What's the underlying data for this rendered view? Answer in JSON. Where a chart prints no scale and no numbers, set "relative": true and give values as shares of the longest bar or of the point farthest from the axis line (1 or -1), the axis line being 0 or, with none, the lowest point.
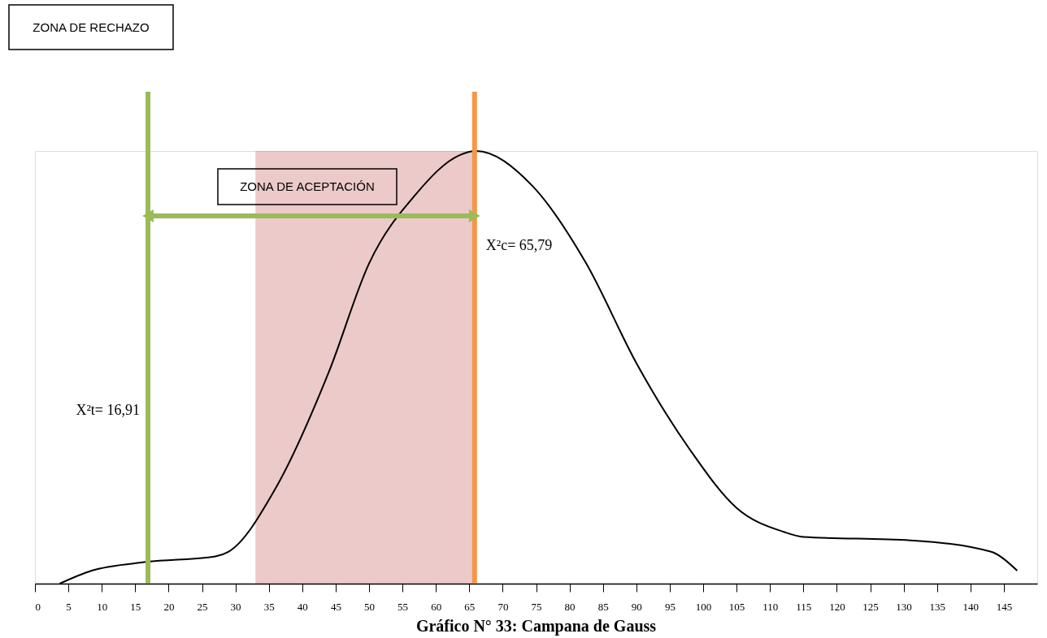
{
  "chart_data": {
    "type": "line",
    "relative": true,
    "title": "Gráfico N° 33: Campana de Gauss",
    "x": [
      3.7,
      8.5,
      16.7,
      27,
      29,
      36,
      44,
      50,
      57,
      63.5,
      66,
      74.4,
      82.5,
      90,
      98,
      105,
      112,
      115,
      131,
      143,
      147
    ],
    "series": [
      {
        "color": "#000000",
        "values": [
          0,
          0.03,
          0.05,
          0.063,
          0.074,
          0.22,
          0.49,
          0.74,
          0.9,
          0.99,
          1,
          0.92,
          0.74,
          0.51,
          0.31,
          0.175,
          0.12,
          0.108,
          0.1,
          0.074,
          0.03
        ]
      }
    ],
    "xlim": [
      0,
      150
    ],
    "xticks": [
      0,
      5,
      10,
      15,
      20,
      25,
      30,
      35,
      40,
      45,
      50,
      55,
      60,
      65,
      70,
      75,
      80,
      85,
      90,
      95,
      100,
      105,
      110,
      115,
      120,
      125,
      130,
      135,
      140,
      145
    ],
    "ref_lines": [
      {
        "axis": "x",
        "value": 16.91,
        "label": "X²t= 16,91",
        "color": "#9bbb59"
      },
      {
        "axis": "x",
        "value": 65.79,
        "label": "X²c= 65,79",
        "color": "#f79646"
      }
    ],
    "bands": [
      {
        "axis": "x",
        "from": 33,
        "to": 65.79,
        "color": "#c0504d"
      }
    ],
    "annotations": [
      "ZONA DE RECHAZO",
      "ZONA DE ACEPTACIÓN"
    ],
    "grid": false,
    "marker": "none",
    "line_style": "solid"
  }
}
